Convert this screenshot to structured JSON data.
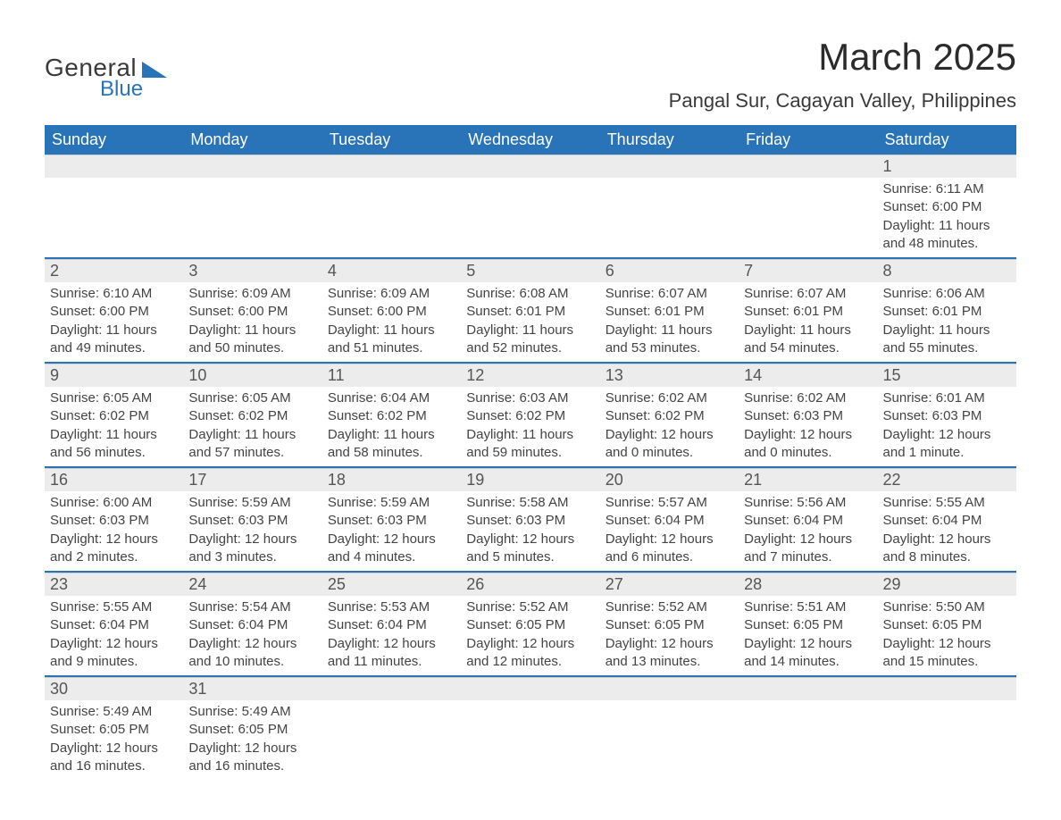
{
  "logo": {
    "line1": "General",
    "line2": "Blue"
  },
  "title": "March 2025",
  "location": "Pangal Sur, Cagayan Valley, Philippines",
  "colors": {
    "header_bg": "#2973b8",
    "header_text": "#ffffff",
    "daynum_bg": "#ececec",
    "row_divider": "#2973b8",
    "text": "#3a3a3a"
  },
  "weekdays": [
    "Sunday",
    "Monday",
    "Tuesday",
    "Wednesday",
    "Thursday",
    "Friday",
    "Saturday"
  ],
  "weeks": [
    [
      {
        "empty": true
      },
      {
        "empty": true
      },
      {
        "empty": true
      },
      {
        "empty": true
      },
      {
        "empty": true
      },
      {
        "empty": true
      },
      {
        "n": "1",
        "sunrise": "Sunrise: 6:11 AM",
        "sunset": "Sunset: 6:00 PM",
        "daylight": "Daylight: 11 hours and 48 minutes."
      }
    ],
    [
      {
        "n": "2",
        "sunrise": "Sunrise: 6:10 AM",
        "sunset": "Sunset: 6:00 PM",
        "daylight": "Daylight: 11 hours and 49 minutes."
      },
      {
        "n": "3",
        "sunrise": "Sunrise: 6:09 AM",
        "sunset": "Sunset: 6:00 PM",
        "daylight": "Daylight: 11 hours and 50 minutes."
      },
      {
        "n": "4",
        "sunrise": "Sunrise: 6:09 AM",
        "sunset": "Sunset: 6:00 PM",
        "daylight": "Daylight: 11 hours and 51 minutes."
      },
      {
        "n": "5",
        "sunrise": "Sunrise: 6:08 AM",
        "sunset": "Sunset: 6:01 PM",
        "daylight": "Daylight: 11 hours and 52 minutes."
      },
      {
        "n": "6",
        "sunrise": "Sunrise: 6:07 AM",
        "sunset": "Sunset: 6:01 PM",
        "daylight": "Daylight: 11 hours and 53 minutes."
      },
      {
        "n": "7",
        "sunrise": "Sunrise: 6:07 AM",
        "sunset": "Sunset: 6:01 PM",
        "daylight": "Daylight: 11 hours and 54 minutes."
      },
      {
        "n": "8",
        "sunrise": "Sunrise: 6:06 AM",
        "sunset": "Sunset: 6:01 PM",
        "daylight": "Daylight: 11 hours and 55 minutes."
      }
    ],
    [
      {
        "n": "9",
        "sunrise": "Sunrise: 6:05 AM",
        "sunset": "Sunset: 6:02 PM",
        "daylight": "Daylight: 11 hours and 56 minutes."
      },
      {
        "n": "10",
        "sunrise": "Sunrise: 6:05 AM",
        "sunset": "Sunset: 6:02 PM",
        "daylight": "Daylight: 11 hours and 57 minutes."
      },
      {
        "n": "11",
        "sunrise": "Sunrise: 6:04 AM",
        "sunset": "Sunset: 6:02 PM",
        "daylight": "Daylight: 11 hours and 58 minutes."
      },
      {
        "n": "12",
        "sunrise": "Sunrise: 6:03 AM",
        "sunset": "Sunset: 6:02 PM",
        "daylight": "Daylight: 11 hours and 59 minutes."
      },
      {
        "n": "13",
        "sunrise": "Sunrise: 6:02 AM",
        "sunset": "Sunset: 6:02 PM",
        "daylight": "Daylight: 12 hours and 0 minutes."
      },
      {
        "n": "14",
        "sunrise": "Sunrise: 6:02 AM",
        "sunset": "Sunset: 6:03 PM",
        "daylight": "Daylight: 12 hours and 0 minutes."
      },
      {
        "n": "15",
        "sunrise": "Sunrise: 6:01 AM",
        "sunset": "Sunset: 6:03 PM",
        "daylight": "Daylight: 12 hours and 1 minute."
      }
    ],
    [
      {
        "n": "16",
        "sunrise": "Sunrise: 6:00 AM",
        "sunset": "Sunset: 6:03 PM",
        "daylight": "Daylight: 12 hours and 2 minutes."
      },
      {
        "n": "17",
        "sunrise": "Sunrise: 5:59 AM",
        "sunset": "Sunset: 6:03 PM",
        "daylight": "Daylight: 12 hours and 3 minutes."
      },
      {
        "n": "18",
        "sunrise": "Sunrise: 5:59 AM",
        "sunset": "Sunset: 6:03 PM",
        "daylight": "Daylight: 12 hours and 4 minutes."
      },
      {
        "n": "19",
        "sunrise": "Sunrise: 5:58 AM",
        "sunset": "Sunset: 6:03 PM",
        "daylight": "Daylight: 12 hours and 5 minutes."
      },
      {
        "n": "20",
        "sunrise": "Sunrise: 5:57 AM",
        "sunset": "Sunset: 6:04 PM",
        "daylight": "Daylight: 12 hours and 6 minutes."
      },
      {
        "n": "21",
        "sunrise": "Sunrise: 5:56 AM",
        "sunset": "Sunset: 6:04 PM",
        "daylight": "Daylight: 12 hours and 7 minutes."
      },
      {
        "n": "22",
        "sunrise": "Sunrise: 5:55 AM",
        "sunset": "Sunset: 6:04 PM",
        "daylight": "Daylight: 12 hours and 8 minutes."
      }
    ],
    [
      {
        "n": "23",
        "sunrise": "Sunrise: 5:55 AM",
        "sunset": "Sunset: 6:04 PM",
        "daylight": "Daylight: 12 hours and 9 minutes."
      },
      {
        "n": "24",
        "sunrise": "Sunrise: 5:54 AM",
        "sunset": "Sunset: 6:04 PM",
        "daylight": "Daylight: 12 hours and 10 minutes."
      },
      {
        "n": "25",
        "sunrise": "Sunrise: 5:53 AM",
        "sunset": "Sunset: 6:04 PM",
        "daylight": "Daylight: 12 hours and 11 minutes."
      },
      {
        "n": "26",
        "sunrise": "Sunrise: 5:52 AM",
        "sunset": "Sunset: 6:05 PM",
        "daylight": "Daylight: 12 hours and 12 minutes."
      },
      {
        "n": "27",
        "sunrise": "Sunrise: 5:52 AM",
        "sunset": "Sunset: 6:05 PM",
        "daylight": "Daylight: 12 hours and 13 minutes."
      },
      {
        "n": "28",
        "sunrise": "Sunrise: 5:51 AM",
        "sunset": "Sunset: 6:05 PM",
        "daylight": "Daylight: 12 hours and 14 minutes."
      },
      {
        "n": "29",
        "sunrise": "Sunrise: 5:50 AM",
        "sunset": "Sunset: 6:05 PM",
        "daylight": "Daylight: 12 hours and 15 minutes."
      }
    ],
    [
      {
        "n": "30",
        "sunrise": "Sunrise: 5:49 AM",
        "sunset": "Sunset: 6:05 PM",
        "daylight": "Daylight: 12 hours and 16 minutes."
      },
      {
        "n": "31",
        "sunrise": "Sunrise: 5:49 AM",
        "sunset": "Sunset: 6:05 PM",
        "daylight": "Daylight: 12 hours and 16 minutes."
      },
      {
        "empty": true
      },
      {
        "empty": true
      },
      {
        "empty": true
      },
      {
        "empty": true
      },
      {
        "empty": true
      }
    ]
  ]
}
